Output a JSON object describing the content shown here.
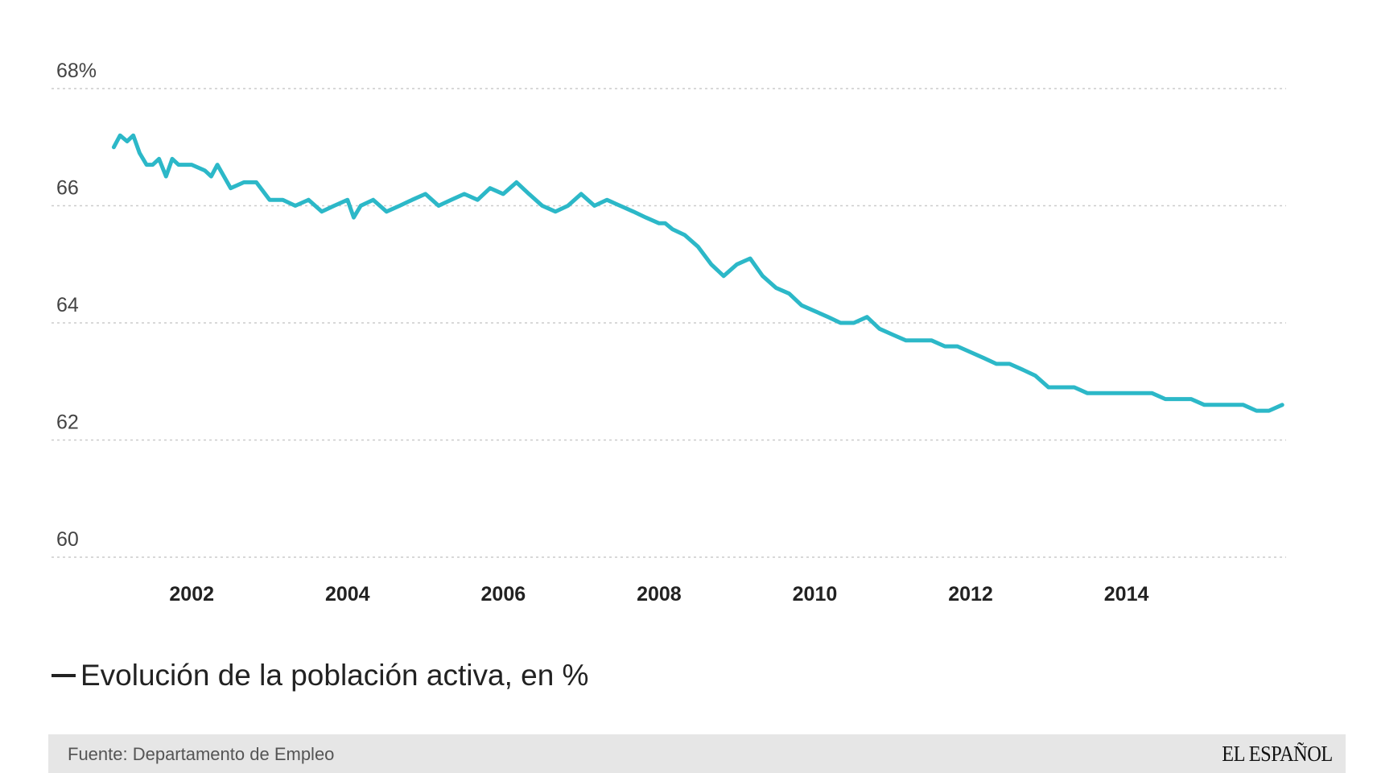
{
  "chart_data": {
    "type": "line",
    "title": "Evolución de la población activa, en %",
    "xlabel": "",
    "ylabel": "",
    "y_ticks": [
      "68%",
      "66",
      "64",
      "62",
      "60"
    ],
    "y_tick_values": [
      68,
      66,
      64,
      62,
      60
    ],
    "x_ticks": [
      "2002",
      "2004",
      "2006",
      "2008",
      "2010",
      "2012",
      "2014"
    ],
    "x_tick_values": [
      2002,
      2004,
      2006,
      2008,
      2010,
      2012,
      2014
    ],
    "ylim": [
      60,
      68
    ],
    "xlim": [
      2000.2,
      2016.05
    ],
    "grid": true,
    "line_color": "#2cb8c8",
    "series": [
      {
        "name": "Evolución de la población activa, en %",
        "x": [
          2001.0,
          2001.08,
          2001.17,
          2001.25,
          2001.33,
          2001.42,
          2001.5,
          2001.58,
          2001.67,
          2001.75,
          2001.83,
          2001.92,
          2002.0,
          2002.17,
          2002.25,
          2002.33,
          2002.5,
          2002.67,
          2002.83,
          2003.0,
          2003.17,
          2003.33,
          2003.5,
          2003.67,
          2003.83,
          2004.0,
          2004.08,
          2004.17,
          2004.33,
          2004.5,
          2004.67,
          2004.83,
          2005.0,
          2005.17,
          2005.33,
          2005.5,
          2005.67,
          2005.83,
          2006.0,
          2006.17,
          2006.33,
          2006.5,
          2006.67,
          2006.83,
          2007.0,
          2007.17,
          2007.33,
          2007.5,
          2007.67,
          2007.83,
          2008.0,
          2008.08,
          2008.17,
          2008.33,
          2008.5,
          2008.67,
          2008.83,
          2009.0,
          2009.17,
          2009.33,
          2009.5,
          2009.67,
          2009.83,
          2010.0,
          2010.17,
          2010.33,
          2010.5,
          2010.67,
          2010.83,
          2011.0,
          2011.17,
          2011.33,
          2011.5,
          2011.67,
          2011.83,
          2012.0,
          2012.17,
          2012.33,
          2012.5,
          2012.67,
          2012.83,
          2013.0,
          2013.17,
          2013.33,
          2013.5,
          2013.67,
          2013.83,
          2014.0,
          2014.17,
          2014.33,
          2014.5,
          2014.67,
          2014.83,
          2015.0,
          2015.17,
          2015.33,
          2015.5,
          2015.67,
          2015.83,
          2016.0
        ],
        "values": [
          67.0,
          67.2,
          67.1,
          67.2,
          66.9,
          66.7,
          66.7,
          66.8,
          66.5,
          66.8,
          66.7,
          66.7,
          66.7,
          66.6,
          66.5,
          66.7,
          66.3,
          66.4,
          66.4,
          66.1,
          66.1,
          66.0,
          66.1,
          65.9,
          66.0,
          66.1,
          65.8,
          66.0,
          66.1,
          65.9,
          66.0,
          66.1,
          66.2,
          66.0,
          66.1,
          66.2,
          66.1,
          66.3,
          66.2,
          66.4,
          66.2,
          66.0,
          65.9,
          66.0,
          66.2,
          66.0,
          66.1,
          66.0,
          65.9,
          65.8,
          65.7,
          65.7,
          65.6,
          65.5,
          65.3,
          65.0,
          64.8,
          65.0,
          65.1,
          64.8,
          64.6,
          64.5,
          64.3,
          64.2,
          64.1,
          64.0,
          64.0,
          64.1,
          63.9,
          63.8,
          63.7,
          63.7,
          63.7,
          63.6,
          63.6,
          63.5,
          63.4,
          63.3,
          63.3,
          63.2,
          63.1,
          62.9,
          62.9,
          62.9,
          62.8,
          62.8,
          62.8,
          62.8,
          62.8,
          62.8,
          62.7,
          62.7,
          62.7,
          62.6,
          62.6,
          62.6,
          62.6,
          62.5,
          62.5,
          62.6
        ]
      }
    ]
  },
  "legend": {
    "label": "Evolución de la población activa, en %"
  },
  "footer": {
    "source": "Fuente: Departamento de Empleo",
    "brand": "EL ESPAÑOL"
  }
}
